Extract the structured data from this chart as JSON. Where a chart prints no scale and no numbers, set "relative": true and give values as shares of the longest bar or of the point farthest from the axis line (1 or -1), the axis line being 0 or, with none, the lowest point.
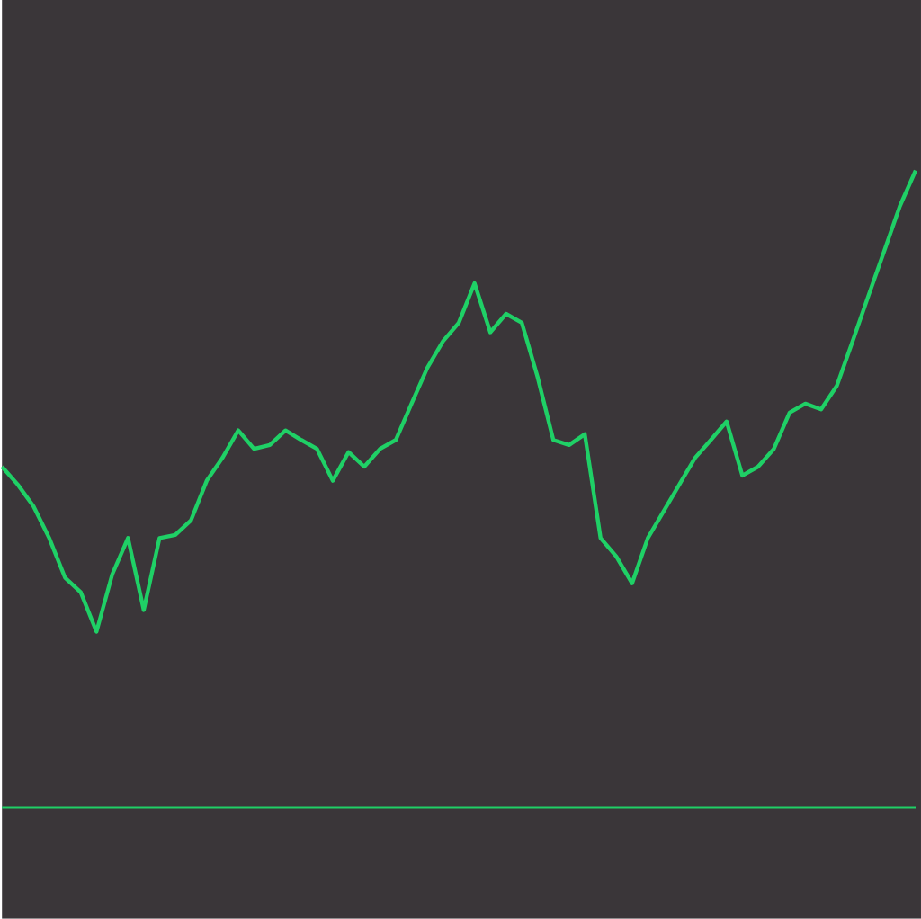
{
  "chart_data": {
    "type": "line",
    "relative": true,
    "categories": [
      null,
      null,
      null,
      null,
      null,
      null,
      null,
      null,
      null,
      null,
      null,
      null,
      null,
      null,
      null,
      null,
      null,
      null,
      null,
      null,
      null,
      null,
      null,
      null,
      null,
      null,
      null,
      null,
      null,
      null,
      null,
      null,
      null,
      null,
      null,
      null,
      null,
      null,
      null,
      null,
      null,
      null,
      null,
      null,
      null,
      null,
      null,
      null,
      null,
      null,
      null,
      null,
      null,
      null,
      null,
      null,
      null,
      null,
      null
    ],
    "series": [
      {
        "color": "#1fd066",
        "values": [
          0.535,
          0.507,
          0.473,
          0.423,
          0.361,
          0.338,
          0.276,
          0.366,
          0.423,
          0.31,
          0.423,
          0.428,
          0.451,
          0.513,
          0.549,
          0.592,
          0.563,
          0.569,
          0.592,
          0.577,
          0.563,
          0.513,
          0.558,
          0.535,
          0.563,
          0.577,
          0.634,
          0.69,
          0.732,
          0.761,
          0.823,
          0.746,
          0.775,
          0.761,
          0.676,
          0.577,
          0.569,
          0.586,
          0.423,
          0.394,
          0.352,
          0.423,
          0.465,
          0.507,
          0.549,
          0.577,
          0.606,
          0.521,
          0.535,
          0.563,
          0.62,
          0.634,
          0.625,
          0.662,
          0.732,
          0.803,
          0.873,
          0.944,
          1
        ]
      }
    ]
  }
}
